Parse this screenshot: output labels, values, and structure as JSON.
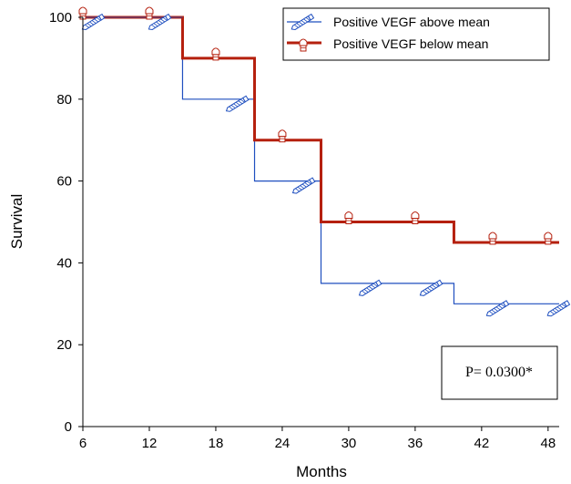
{
  "chart_data": {
    "type": "line",
    "subtype": "kaplan-meier-step",
    "title": "",
    "xlabel": "Months",
    "ylabel": "Survival",
    "xlim": [
      6,
      49
    ],
    "ylim": [
      0,
      100
    ],
    "xticks": [
      6,
      12,
      18,
      24,
      30,
      36,
      42,
      48
    ],
    "yticks": [
      0,
      20,
      40,
      60,
      80,
      100
    ],
    "grid": false,
    "legend_position": "top-right",
    "series": [
      {
        "name": "Positive VEGF above mean",
        "color": "#1f4fbf",
        "line_width": "thin",
        "marker": "pencil-icon",
        "steps": [
          [
            6,
            100
          ],
          [
            15,
            100
          ],
          [
            15,
            80
          ],
          [
            21.5,
            80
          ],
          [
            21.5,
            60
          ],
          [
            27.5,
            60
          ],
          [
            27.5,
            35
          ],
          [
            39.5,
            35
          ],
          [
            39.5,
            30
          ],
          [
            49,
            30
          ]
        ],
        "censored": [
          [
            7,
            100
          ],
          [
            13,
            100
          ],
          [
            20,
            80
          ],
          [
            26,
            60
          ],
          [
            32,
            35
          ],
          [
            37.5,
            35
          ],
          [
            43.5,
            30
          ],
          [
            49,
            30
          ]
        ]
      },
      {
        "name": "Positive VEGF below mean",
        "color": "#b5200e",
        "line_width": "thick",
        "marker": "bullet-icon",
        "steps": [
          [
            6,
            100
          ],
          [
            15,
            100
          ],
          [
            15,
            90
          ],
          [
            21.5,
            90
          ],
          [
            21.5,
            70
          ],
          [
            27.5,
            70
          ],
          [
            27.5,
            50
          ],
          [
            39.5,
            50
          ],
          [
            39.5,
            45
          ],
          [
            49,
            45
          ]
        ],
        "censored": [
          [
            6,
            100
          ],
          [
            12,
            100
          ],
          [
            18,
            90
          ],
          [
            24,
            70
          ],
          [
            30,
            50
          ],
          [
            36,
            50
          ],
          [
            43,
            45
          ],
          [
            48,
            45
          ]
        ]
      }
    ],
    "annotations": [
      {
        "text": "P= 0.0300*",
        "position": "lower-right"
      }
    ]
  }
}
